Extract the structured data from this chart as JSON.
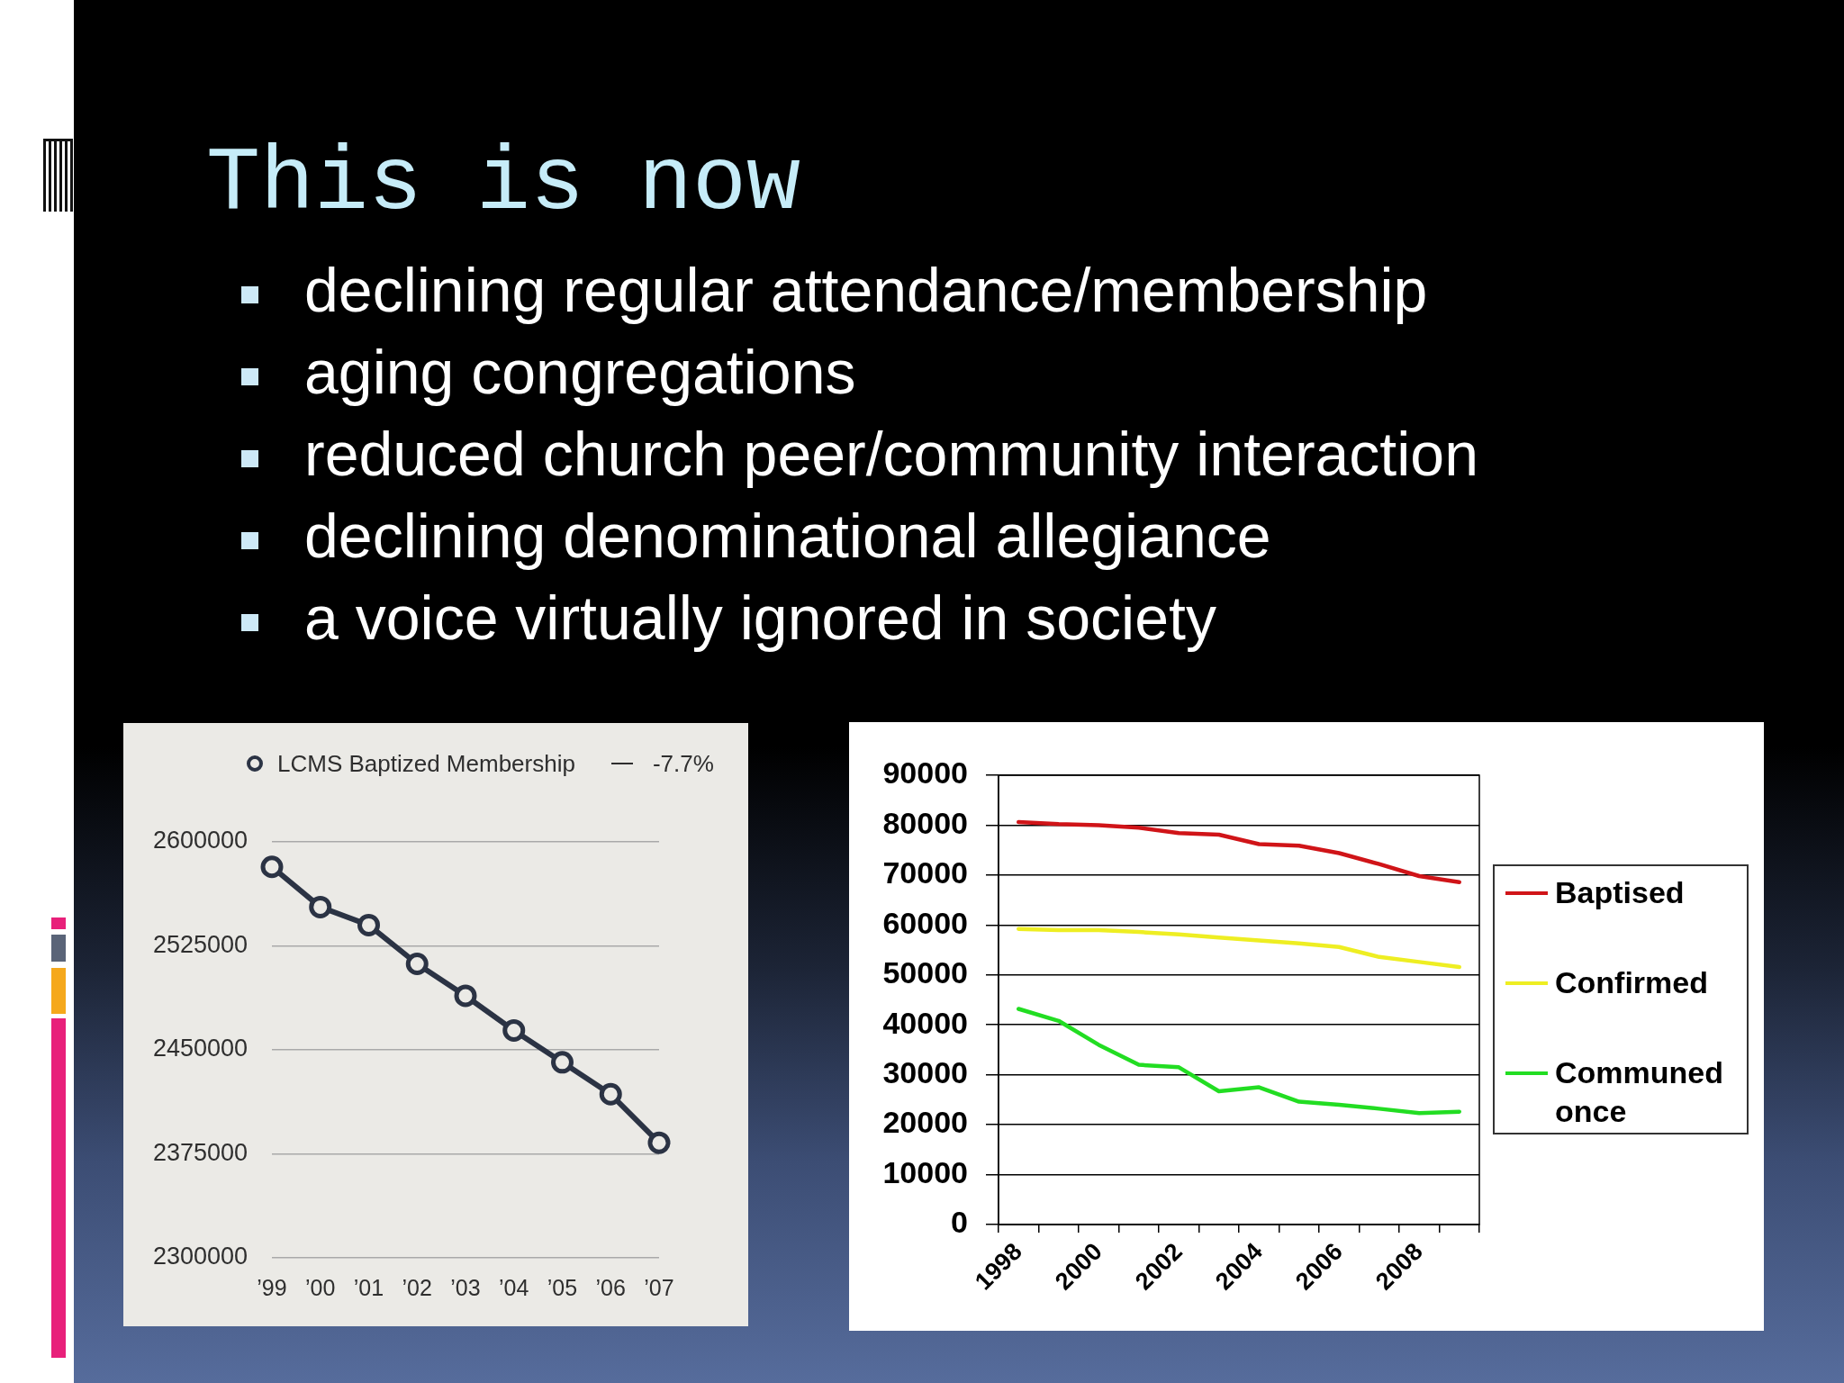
{
  "chart_data": [
    {
      "type": "other",
      "title": "This is now",
      "annotations": [
        "declining regular attendance/membership",
        "aging congregations",
        "reduced church peer/community interaction",
        "declining denominational allegiance",
        "a voice virtually ignored in society"
      ]
    },
    {
      "type": "line",
      "categories": [
        "’99",
        "’00",
        "’01",
        "’02",
        "’03",
        "’04",
        "’05",
        "’06",
        "’07"
      ],
      "series": [
        {
          "name": "LCMS Baptized Membership",
          "color": "#2b3344",
          "values": [
            2582000,
            2553000,
            2540000,
            2512000,
            2489000,
            2464000,
            2441000,
            2418000,
            2383000
          ]
        }
      ],
      "ylim": [
        2300000,
        2600000
      ],
      "yticks": [
        2300000,
        2375000,
        2450000,
        2525000,
        2600000
      ],
      "grid": "y",
      "legend": "top",
      "marker": "circle",
      "annotations": [
        "-7.7%"
      ]
    },
    {
      "type": "line",
      "categories": [
        "1998",
        null,
        "2000",
        null,
        "2002",
        null,
        "2004",
        null,
        "2006",
        null,
        "2008",
        null
      ],
      "series": [
        {
          "name": "Baptised",
          "color": "#d01418",
          "values": [
            80600,
            80200,
            80000,
            79500,
            78400,
            78100,
            76200,
            75900,
            74400,
            72200,
            69800,
            68600
          ]
        },
        {
          "name": "Confirmed",
          "color": "#eeee22",
          "values": [
            59200,
            59000,
            59000,
            58600,
            58100,
            57500,
            56900,
            56300,
            55600,
            53600,
            52600,
            51600
          ]
        },
        {
          "name": "Communed once",
          "color": "#22dd22",
          "values": [
            43200,
            40800,
            36000,
            32000,
            31500,
            26700,
            27500,
            24600,
            24000,
            23200,
            22300,
            22600
          ]
        }
      ],
      "ylim": [
        0,
        90000
      ],
      "yticks": [
        0,
        10000,
        20000,
        30000,
        40000,
        50000,
        60000,
        70000,
        80000,
        90000
      ],
      "grid": "y",
      "legend": "right"
    }
  ]
}
